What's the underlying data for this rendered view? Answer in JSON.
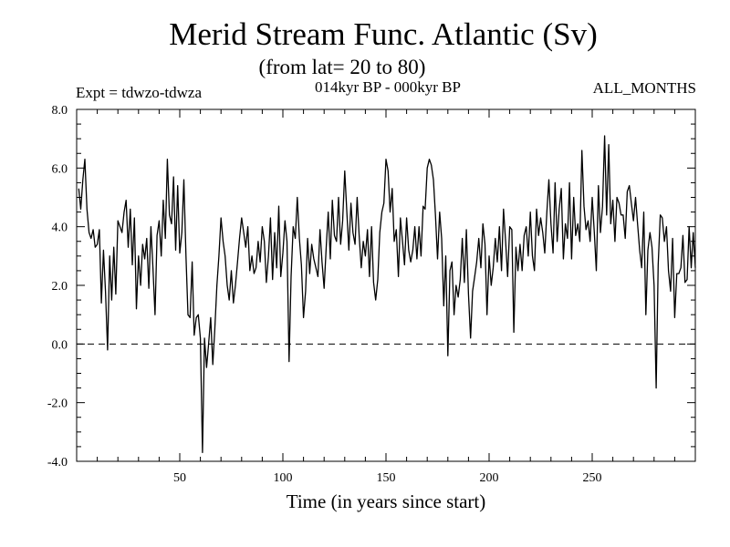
{
  "header": {
    "title": "Merid Stream Func. Atlantic (Sv)",
    "subtitle": "(from lat= 20 to 80)",
    "experiment": "Expt = tdwzo-tdwza",
    "period": "014kyr BP - 000kyr BP",
    "months": "ALL_MONTHS"
  },
  "chart_data": {
    "type": "line",
    "title": "Merid Stream Func. Atlantic (Sv)",
    "subtitle": "(from lat= 20 to 80)",
    "xlabel": "Time (in years since start)",
    "ylabel": "",
    "xlim": [
      0,
      300
    ],
    "ylim": [
      -4.0,
      8.0
    ],
    "xticks": [
      50,
      100,
      150,
      200,
      250
    ],
    "xtick_labels": [
      "50",
      "100",
      "150",
      "200",
      "250"
    ],
    "yticks": [
      -4.0,
      -2.0,
      0.0,
      2.0,
      4.0,
      6.0,
      8.0
    ],
    "ytick_labels": [
      "-4.0",
      "-2.0",
      "0.0",
      "2.0",
      "4.0",
      "6.0",
      "8.0"
    ],
    "reference_line": {
      "y": 0.0,
      "style": "dashed"
    },
    "grid": false,
    "series": [
      {
        "x": [
          1,
          2,
          3,
          4,
          5,
          6,
          7,
          8,
          9,
          10,
          11,
          12,
          13,
          14,
          15,
          16,
          17,
          18,
          19,
          20,
          21,
          22,
          23,
          24,
          25,
          26,
          27,
          28,
          29,
          30,
          31,
          32,
          33,
          34,
          35,
          36,
          37,
          38,
          39,
          40,
          41,
          42,
          43,
          44,
          45,
          46,
          47,
          48,
          49,
          50,
          51,
          52,
          53,
          54,
          55,
          56,
          57,
          58,
          59,
          60,
          61,
          62,
          63,
          64,
          65,
          66,
          67,
          68,
          69,
          70,
          71,
          72,
          73,
          74,
          75,
          76,
          77,
          78,
          79,
          80,
          81,
          82,
          83,
          84,
          85,
          86,
          87,
          88,
          89,
          90,
          91,
          92,
          93,
          94,
          95,
          96,
          97,
          98,
          99,
          100,
          101,
          102,
          103,
          104,
          105,
          106,
          107,
          108,
          109,
          110,
          111,
          112,
          113,
          114,
          115,
          116,
          117,
          118,
          119,
          120,
          121,
          122,
          123,
          124,
          125,
          126,
          127,
          128,
          129,
          130,
          131,
          132,
          133,
          134,
          135,
          136,
          137,
          138,
          139,
          140,
          141,
          142,
          143,
          144,
          145,
          146,
          147,
          148,
          149,
          150,
          151,
          152,
          153,
          154,
          155,
          156,
          157,
          158,
          159,
          160,
          161,
          162,
          163,
          164,
          165,
          166,
          167,
          168,
          169,
          170,
          171,
          172,
          173,
          174,
          175,
          176,
          177,
          178,
          179,
          180,
          181,
          182,
          183,
          184,
          185,
          186,
          187,
          188,
          189,
          190,
          191,
          192,
          193,
          194,
          195,
          196,
          197,
          198,
          199,
          200,
          201,
          202,
          203,
          204,
          205,
          206,
          207,
          208,
          209,
          210,
          211,
          212,
          213,
          214,
          215,
          216,
          217,
          218,
          219,
          220,
          221,
          222,
          223,
          224,
          225,
          226,
          227,
          228,
          229,
          230,
          231,
          232,
          233,
          234,
          235,
          236,
          237,
          238,
          239,
          240,
          241,
          242,
          243,
          244,
          245,
          246,
          247,
          248,
          249,
          250,
          251,
          252,
          253,
          254,
          255,
          256,
          257,
          258,
          259,
          260,
          261,
          262,
          263,
          264,
          265,
          266,
          267,
          268,
          269,
          270,
          271,
          272,
          273,
          274,
          275,
          276,
          277,
          278,
          279,
          280,
          281,
          282,
          283,
          284,
          285,
          286,
          287,
          288,
          289,
          290,
          291,
          292,
          293,
          294,
          295,
          296,
          297,
          298,
          299,
          300
        ],
        "values": [
          5.3,
          4.6,
          5.6,
          6.3,
          4.6,
          3.8,
          3.6,
          3.9,
          3.3,
          3.4,
          3.9,
          1.4,
          3.2,
          1.8,
          -0.2,
          3.0,
          1.5,
          3.3,
          1.7,
          4.2,
          4.0,
          3.8,
          4.5,
          4.9,
          3.3,
          4.6,
          2.7,
          4.3,
          1.2,
          3.0,
          2.0,
          3.4,
          2.9,
          3.6,
          1.9,
          4.0,
          2.6,
          1.0,
          3.7,
          4.2,
          3.0,
          4.9,
          3.6,
          6.3,
          4.4,
          4.1,
          5.7,
          3.2,
          5.4,
          3.1,
          3.8,
          5.6,
          3.0,
          1.0,
          0.9,
          2.8,
          0.3,
          0.9,
          1.0,
          0.2,
          -3.7,
          0.2,
          -0.8,
          0.0,
          0.9,
          -0.7,
          0.5,
          2.0,
          3.0,
          4.3,
          3.5,
          3.0,
          2.0,
          1.5,
          2.5,
          1.4,
          2.0,
          2.8,
          3.6,
          4.3,
          3.8,
          3.3,
          4.0,
          2.5,
          3.0,
          2.4,
          2.6,
          3.5,
          2.8,
          4.0,
          3.5,
          2.1,
          3.0,
          4.3,
          2.2,
          3.8,
          2.6,
          4.7,
          2.3,
          3.1,
          4.2,
          3.5,
          -0.6,
          2.3,
          4.0,
          3.6,
          5.0,
          3.6,
          2.7,
          0.9,
          1.8,
          3.6,
          2.4,
          3.4,
          2.9,
          2.6,
          2.3,
          3.9,
          2.8,
          1.9,
          3.3,
          4.5,
          2.9,
          4.9,
          3.7,
          3.5,
          5.0,
          3.4,
          4.2,
          5.9,
          4.5,
          3.2,
          4.8,
          3.8,
          3.4,
          5.0,
          3.7,
          2.6,
          3.5,
          3.0,
          3.9,
          2.3,
          4.0,
          2.1,
          1.5,
          2.2,
          3.8,
          4.5,
          4.8,
          6.3,
          5.9,
          4.5,
          5.3,
          3.5,
          3.9,
          2.3,
          4.3,
          3.5,
          2.7,
          4.3,
          3.2,
          2.8,
          3.2,
          4.0,
          2.9,
          4.0,
          3.0,
          4.7,
          4.6,
          6.0,
          6.3,
          6.1,
          5.6,
          4.4,
          2.9,
          4.5,
          3.6,
          1.3,
          3.0,
          -0.4,
          2.5,
          2.8,
          1.0,
          2.0,
          1.6,
          2.2,
          3.6,
          2.1,
          3.9,
          1.7,
          0.2,
          1.8,
          2.3,
          2.8,
          3.6,
          2.6,
          4.1,
          3.4,
          1.0,
          3.0,
          2.0,
          2.6,
          3.6,
          2.8,
          4.0,
          2.5,
          4.6,
          3.5,
          2.3,
          4.0,
          3.9,
          0.4,
          3.3,
          2.5,
          3.4,
          2.5,
          3.7,
          4.0,
          3.0,
          4.5,
          3.0,
          2.5,
          4.6,
          3.7,
          4.3,
          3.8,
          3.1,
          4.5,
          5.6,
          4.1,
          3.1,
          5.5,
          3.5,
          4.6,
          5.3,
          2.9,
          4.1,
          3.6,
          5.5,
          2.9,
          5.0,
          3.7,
          4.1,
          3.5,
          6.6,
          4.7,
          3.9,
          4.2,
          3.5,
          5.0,
          3.8,
          2.5,
          5.4,
          3.8,
          4.7,
          7.1,
          4.4,
          6.8,
          4.1,
          4.9,
          3.5,
          5.0,
          4.8,
          4.4,
          4.4,
          3.6,
          5.2,
          5.4,
          4.8,
          4.2,
          5.0,
          4.1,
          3.2,
          2.6,
          4.5,
          1.0,
          3.2,
          3.8,
          3.3,
          2.0,
          -1.5,
          2.7,
          4.4,
          4.3,
          3.5,
          4.0,
          2.5,
          1.8,
          3.6,
          0.9,
          2.4,
          2.4,
          2.6,
          3.7,
          2.1,
          2.2,
          4.0,
          2.6,
          3.8,
          2.6
        ]
      }
    ]
  }
}
